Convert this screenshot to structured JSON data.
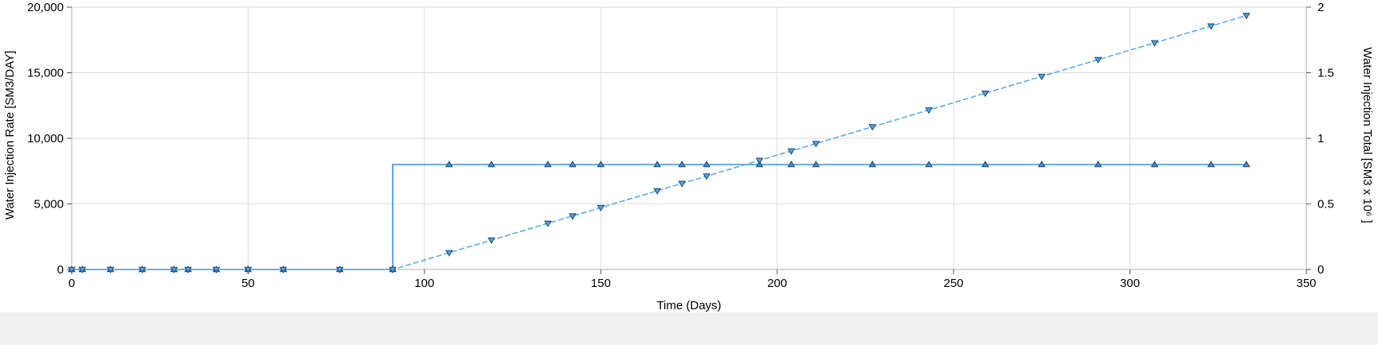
{
  "chart_data": {
    "type": "line",
    "title": "",
    "xlabel": "Time (Days)",
    "ylabel_left": "Water Injection Rate [SM3/DAY]",
    "ylabel_right": "Water Injection Total [SM3 x 10⁶ ]",
    "xlim": [
      0,
      350
    ],
    "ylim_left": [
      0,
      20000
    ],
    "ylim_right": [
      0,
      2
    ],
    "grid": true,
    "legend": "none",
    "x_ticks": [
      {
        "value": 0,
        "label": "0"
      },
      {
        "value": 50,
        "label": "50"
      },
      {
        "value": 100,
        "label": "100"
      },
      {
        "value": 150,
        "label": "150"
      },
      {
        "value": 200,
        "label": "200"
      },
      {
        "value": 250,
        "label": "250"
      },
      {
        "value": 300,
        "label": "300"
      },
      {
        "value": 350,
        "label": "350"
      }
    ],
    "y_ticks_left": [
      {
        "value": 0,
        "label": "0"
      },
      {
        "value": 5000,
        "label": "5,000"
      },
      {
        "value": 10000,
        "label": "10,000"
      },
      {
        "value": 15000,
        "label": "15,000"
      },
      {
        "value": 20000,
        "label": "20,000"
      }
    ],
    "y_ticks_right": [
      {
        "value": 0,
        "label": "0"
      },
      {
        "value": 0.5,
        "label": "0.5"
      },
      {
        "value": 1,
        "label": "1"
      },
      {
        "value": 1.5,
        "label": "1.5"
      },
      {
        "value": 2,
        "label": "2"
      }
    ],
    "series": [
      {
        "axis": "left",
        "style": "solid-step",
        "marker": "triangle-up",
        "color": "#3a8fd6",
        "x": [
          0,
          3,
          11,
          20,
          29,
          33,
          41,
          50,
          60,
          76,
          91,
          91,
          107,
          119,
          135,
          142,
          150,
          166,
          173,
          180,
          195,
          204,
          211,
          227,
          243,
          259,
          275,
          291,
          307,
          323,
          333
        ],
        "y": [
          0,
          0,
          0,
          0,
          0,
          0,
          0,
          0,
          0,
          0,
          0,
          8000,
          8000,
          8000,
          8000,
          8000,
          8000,
          8000,
          8000,
          8000,
          8000,
          8000,
          8000,
          8000,
          8000,
          8000,
          8000,
          8000,
          8000,
          8000,
          8000
        ],
        "marker_x": [
          0,
          3,
          11,
          20,
          29,
          33,
          41,
          50,
          60,
          76,
          91,
          107,
          119,
          135,
          142,
          150,
          166,
          173,
          180,
          195,
          204,
          211,
          227,
          243,
          259,
          275,
          291,
          307,
          323,
          333
        ]
      },
      {
        "axis": "right",
        "style": "dashed",
        "marker": "triangle-down",
        "color": "#5aabee",
        "x": [
          0,
          3,
          11,
          20,
          29,
          33,
          41,
          50,
          60,
          76,
          91,
          107,
          119,
          135,
          142,
          150,
          166,
          173,
          180,
          195,
          204,
          211,
          227,
          243,
          259,
          275,
          291,
          307,
          323,
          333
        ],
        "y": [
          0,
          0,
          0,
          0,
          0,
          0,
          0,
          0,
          0,
          0,
          0,
          0.128,
          0.224,
          0.352,
          0.408,
          0.472,
          0.6,
          0.656,
          0.712,
          0.832,
          0.904,
          0.96,
          1.088,
          1.216,
          1.344,
          1.472,
          1.6,
          1.728,
          1.856,
          1.936
        ]
      }
    ]
  }
}
